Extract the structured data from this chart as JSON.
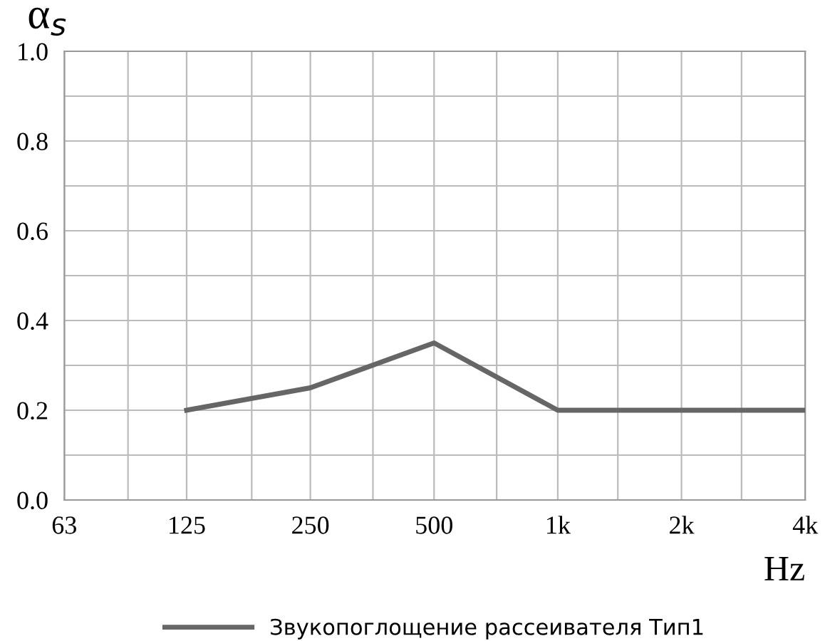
{
  "chart_data": {
    "type": "line",
    "ylabel": "α$_{s}$",
    "xlabel": "Hz",
    "log": "x",
    "x": [
      125,
      250,
      500,
      1000,
      2000,
      4000
    ],
    "series": [
      {
        "name": "Звукопоглощение рассеивателя Тип1",
        "color": "#666666",
        "values": [
          0.2,
          0.25,
          0.35,
          0.2,
          0.2,
          0.2
        ]
      }
    ],
    "xlim": [
      63,
      4000
    ],
    "xticks": [
      {
        "value": 63,
        "label": "63"
      },
      {
        "value": 90,
        "label": null
      },
      {
        "value": 125,
        "label": "125"
      },
      {
        "value": 180,
        "label": null
      },
      {
        "value": 250,
        "label": "250"
      },
      {
        "value": 355,
        "label": null
      },
      {
        "value": 500,
        "label": "500"
      },
      {
        "value": 710,
        "label": null
      },
      {
        "value": 1000,
        "label": "1k"
      },
      {
        "value": 1400,
        "label": null
      },
      {
        "value": 2000,
        "label": "2k"
      },
      {
        "value": 2800,
        "label": null
      },
      {
        "value": 4000,
        "label": "4k"
      }
    ],
    "ylim": [
      0,
      1
    ],
    "yticks": [
      {
        "value": 0,
        "label": "0.0"
      },
      {
        "value": 0.1,
        "label": null
      },
      {
        "value": 0.2,
        "label": "0.2"
      },
      {
        "value": 0.3,
        "label": null
      },
      {
        "value": 0.4,
        "label": "0.4"
      },
      {
        "value": 0.5,
        "label": null
      },
      {
        "value": 0.6,
        "label": "0.6"
      },
      {
        "value": 0.7,
        "label": null
      },
      {
        "value": 0.8,
        "label": "0.8"
      },
      {
        "value": 0.9,
        "label": null
      },
      {
        "value": 1.0,
        "label": "1.0"
      }
    ],
    "grid": true,
    "legend": "bottom",
    "marker": "none",
    "line_style": "solid"
  }
}
